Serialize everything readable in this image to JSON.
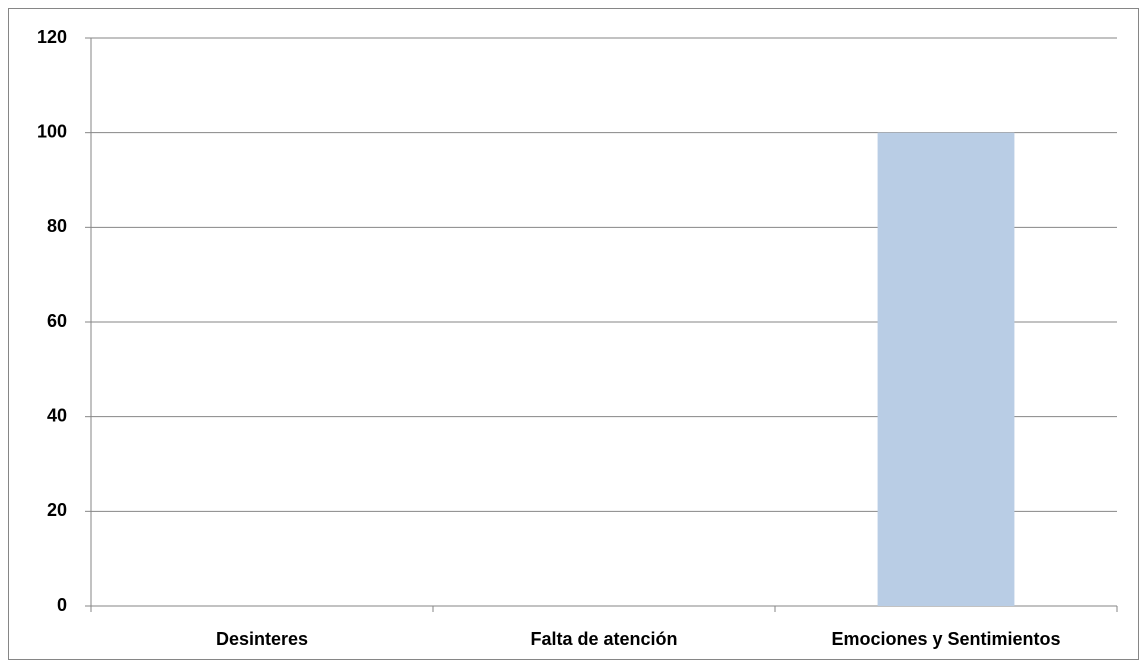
{
  "chart_data": {
    "type": "bar",
    "categories": [
      "Desinteres",
      "Falta de atención",
      "Emociones y Sentimientos"
    ],
    "values": [
      0,
      0,
      100
    ],
    "color": "#b9cde5",
    "ylim": [
      0,
      120
    ],
    "yticks": [
      0,
      20,
      40,
      60,
      80,
      100,
      120
    ],
    "grid": true
  }
}
